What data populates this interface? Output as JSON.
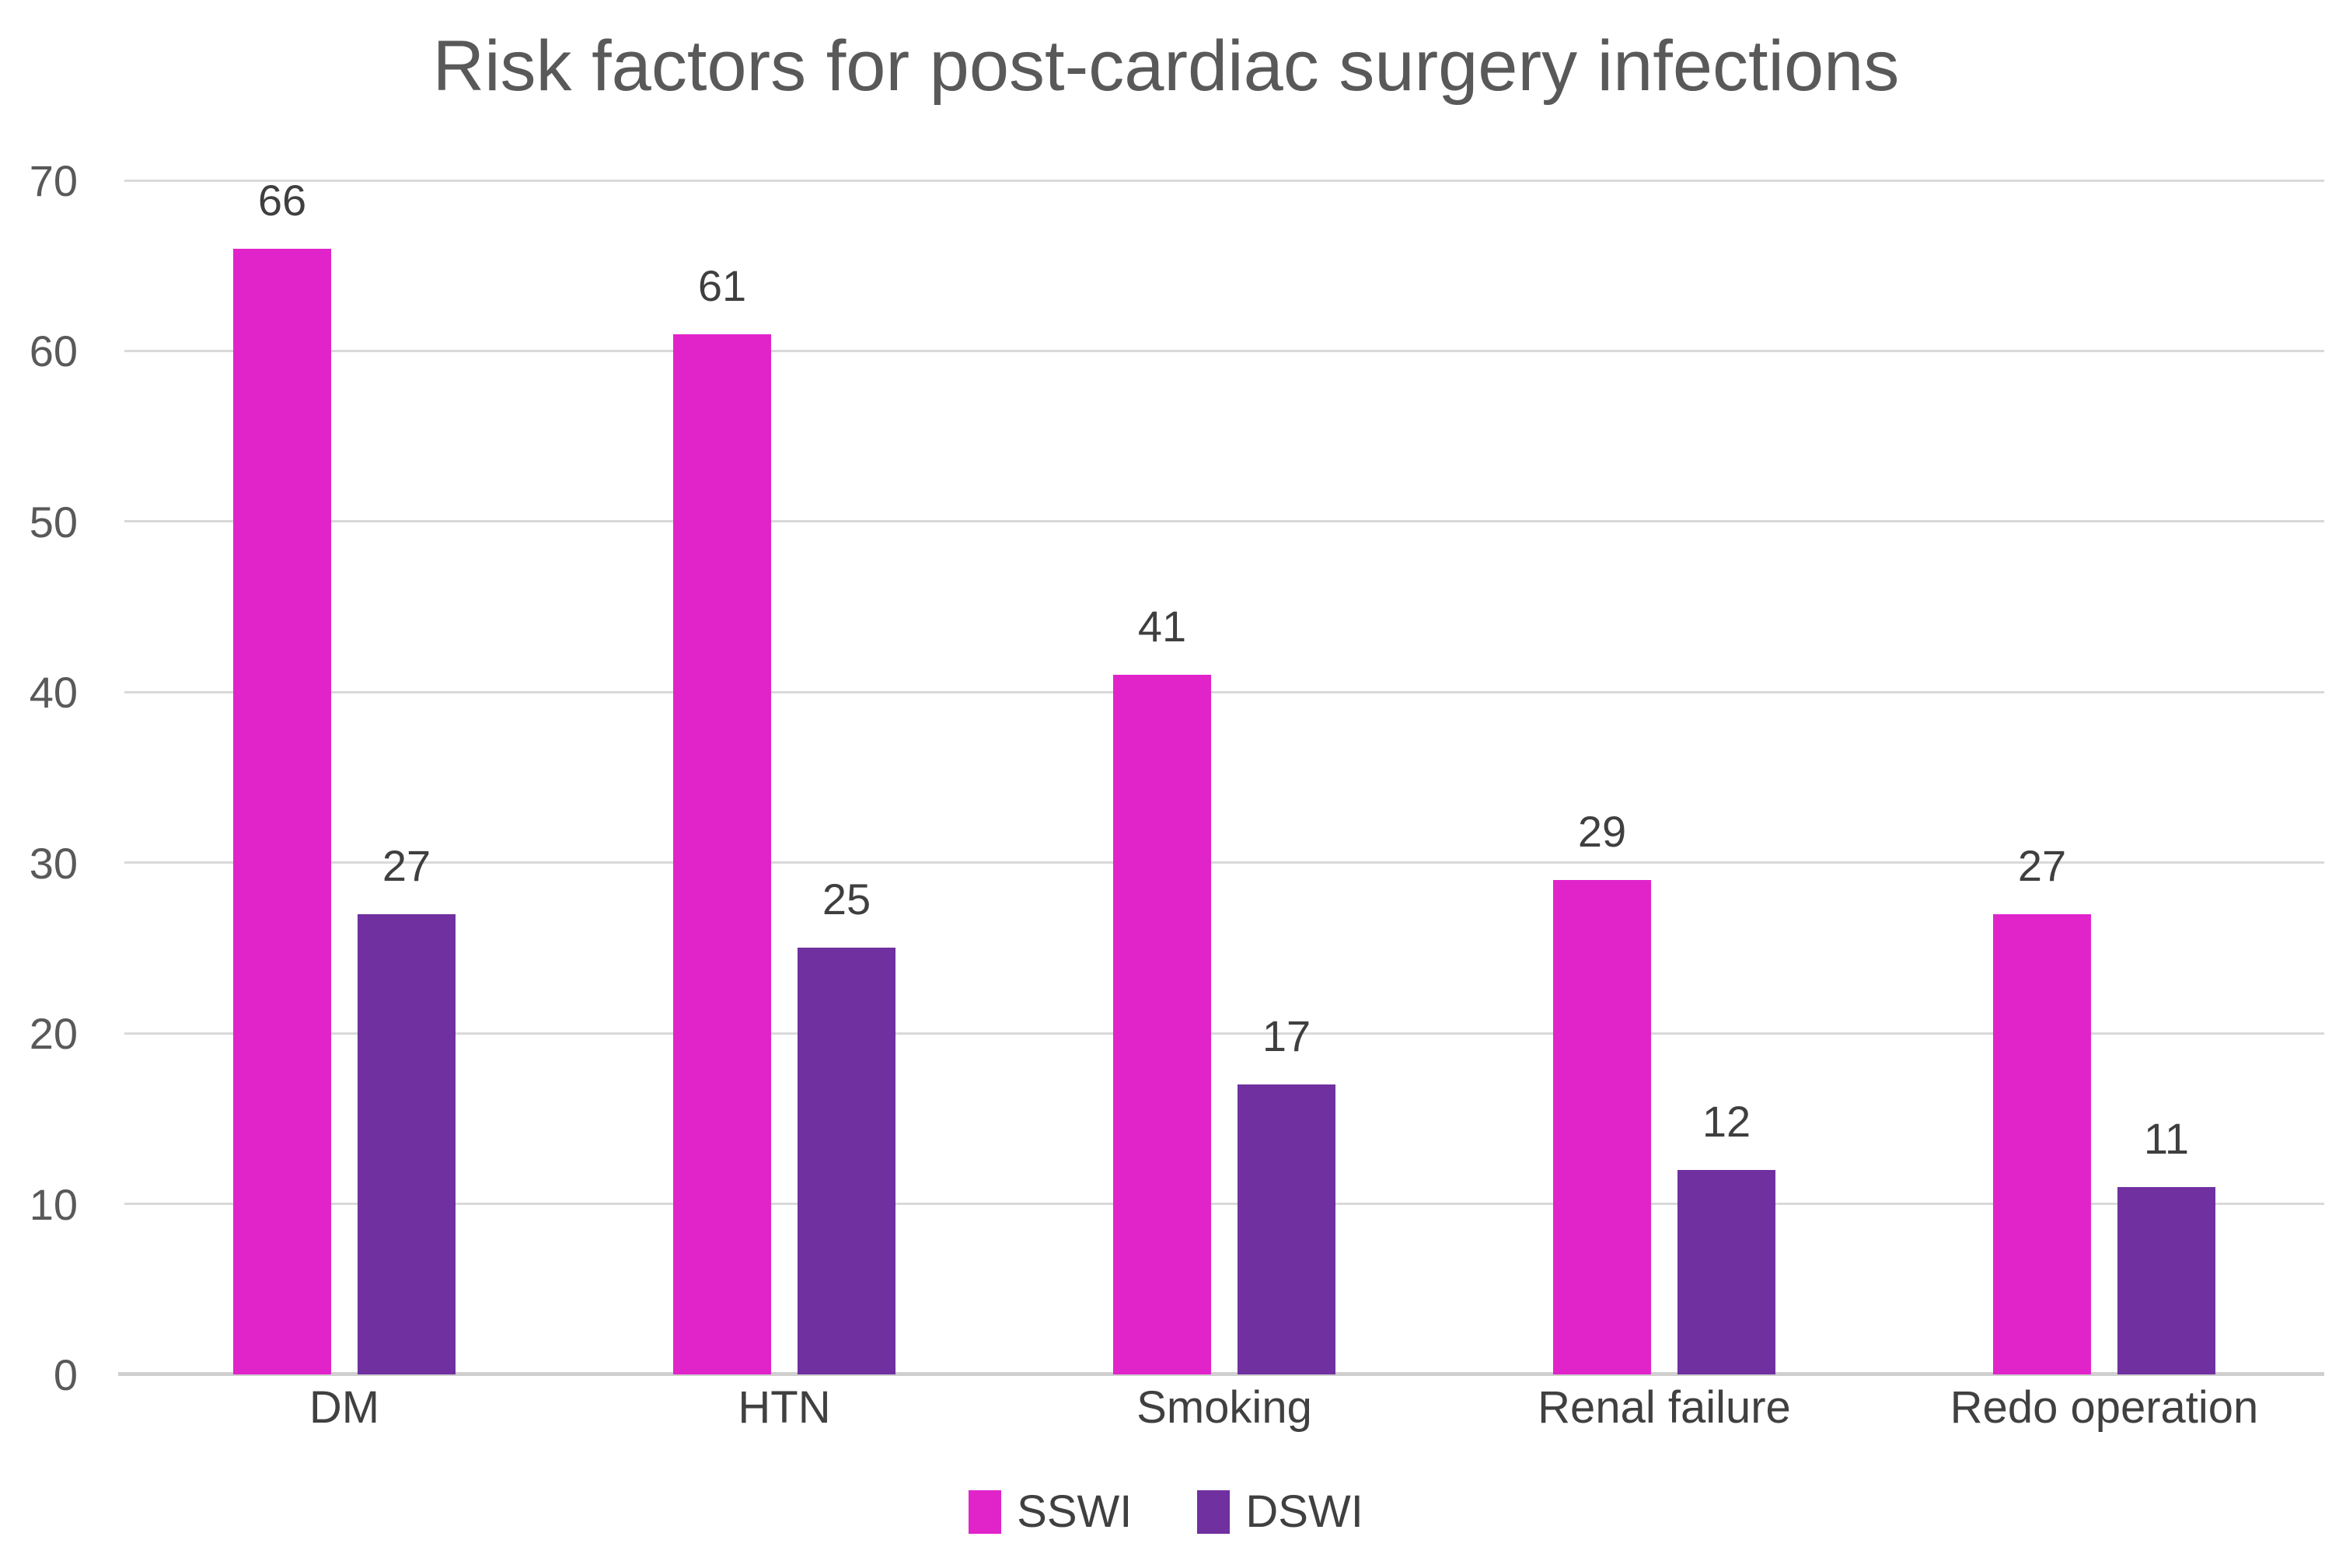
{
  "chart_data": {
    "type": "bar",
    "title": "Risk factors for post-cardiac surgery infections",
    "categories": [
      "DM",
      "HTN",
      "Smoking",
      "Renal failure",
      "Redo operation"
    ],
    "series": [
      {
        "name": "SSWI",
        "color": "#E124CA",
        "values": [
          66,
          61,
          41,
          29,
          27
        ]
      },
      {
        "name": "DSWI",
        "color": "#7030A0",
        "values": [
          27,
          25,
          17,
          12,
          11
        ]
      }
    ],
    "xlabel": "",
    "ylabel": "",
    "ylim": [
      0,
      70
    ],
    "yticks": [
      0,
      10,
      20,
      30,
      40,
      50,
      60,
      70
    ],
    "grid": "horizontal",
    "gridline_color": "#d9d9d9",
    "axis_line_color": "#cfcfcf",
    "data_labels": true,
    "legend_position": "bottom",
    "title_color": "#595959",
    "tick_text_color": "#595959",
    "label_text_color": "#3f3f3f"
  }
}
